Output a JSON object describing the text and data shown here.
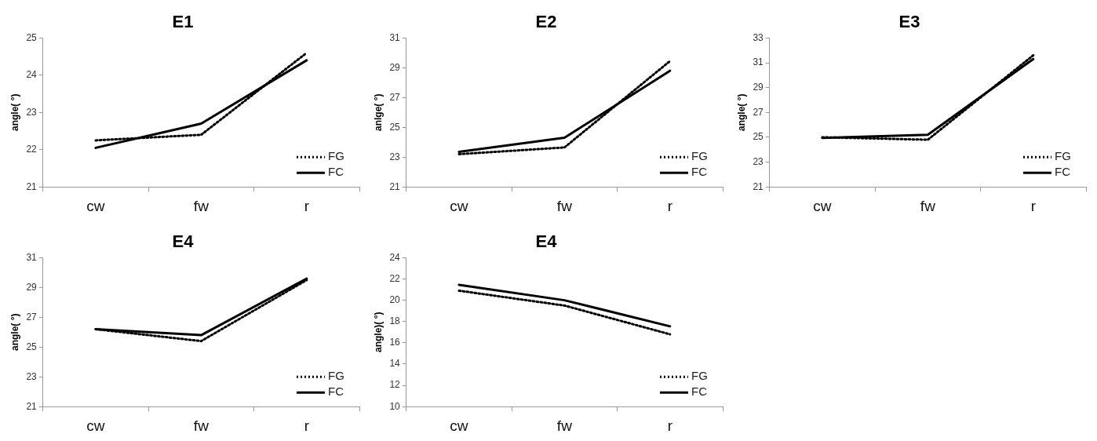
{
  "chart_data": [
    {
      "type": "line",
      "title": "E1",
      "ylabel": "angle( °)",
      "categories": [
        "cw",
        "fw",
        "r"
      ],
      "ylim": [
        21,
        25
      ],
      "yticks": [
        21,
        22,
        23,
        24,
        25
      ],
      "grid": false,
      "legend": "bottom right",
      "marker": "none",
      "series": [
        {
          "name": "FG",
          "color": "#000000",
          "line_style": "dotted",
          "values": [
            22.25,
            22.4,
            24.6
          ]
        },
        {
          "name": "FC",
          "color": "#000000",
          "line_style": "solid",
          "values": [
            22.05,
            22.7,
            24.4
          ]
        }
      ]
    },
    {
      "type": "line",
      "title": "E2",
      "ylabel": "anlge( °)",
      "categories": [
        "cw",
        "fw",
        "r"
      ],
      "ylim": [
        21,
        31
      ],
      "yticks": [
        21,
        23,
        25,
        27,
        29,
        31
      ],
      "grid": false,
      "legend": "bottom right",
      "marker": "none",
      "series": [
        {
          "name": "FG",
          "color": "#000000",
          "line_style": "dotted",
          "values": [
            23.2,
            23.65,
            29.45
          ]
        },
        {
          "name": "FC",
          "color": "#000000",
          "line_style": "solid",
          "values": [
            23.35,
            24.3,
            28.8
          ]
        }
      ]
    },
    {
      "type": "line",
      "title": "E3",
      "ylabel": "angle( °)",
      "categories": [
        "cw",
        "fw",
        "r"
      ],
      "ylim": [
        21,
        33
      ],
      "yticks": [
        21,
        23,
        25,
        27,
        29,
        31,
        33
      ],
      "grid": false,
      "legend": "bottom right",
      "marker": "none",
      "series": [
        {
          "name": "FG",
          "color": "#000000",
          "line_style": "dotted",
          "values": [
            25.0,
            24.8,
            31.6
          ]
        },
        {
          "name": "FC",
          "color": "#000000",
          "line_style": "solid",
          "values": [
            24.95,
            25.2,
            31.3
          ]
        }
      ]
    },
    {
      "type": "line",
      "title": "E4",
      "ylabel": "angle( °)",
      "categories": [
        "cw",
        "fw",
        "r"
      ],
      "ylim": [
        21,
        31
      ],
      "yticks": [
        21,
        23,
        25,
        27,
        29,
        31
      ],
      "grid": false,
      "legend": "bottom right",
      "marker": "none",
      "series": [
        {
          "name": "FG",
          "color": "#000000",
          "line_style": "dotted",
          "values": [
            26.2,
            25.4,
            29.5
          ]
        },
        {
          "name": "FC",
          "color": "#000000",
          "line_style": "solid",
          "values": [
            26.2,
            25.8,
            29.6
          ]
        }
      ]
    },
    {
      "type": "line",
      "title": "E4",
      "ylabel": "angle)( °)",
      "categories": [
        "cw",
        "fw",
        "r"
      ],
      "ylim": [
        10,
        24
      ],
      "yticks": [
        10,
        12,
        14,
        16,
        18,
        20,
        22,
        24
      ],
      "grid": false,
      "legend": "bottom right",
      "marker": "none",
      "series": [
        {
          "name": "FG",
          "color": "#000000",
          "line_style": "dotted",
          "values": [
            20.9,
            19.5,
            16.8
          ]
        },
        {
          "name": "FC",
          "color": "#000000",
          "line_style": "solid",
          "values": [
            21.45,
            20.0,
            17.55
          ]
        }
      ]
    }
  ]
}
